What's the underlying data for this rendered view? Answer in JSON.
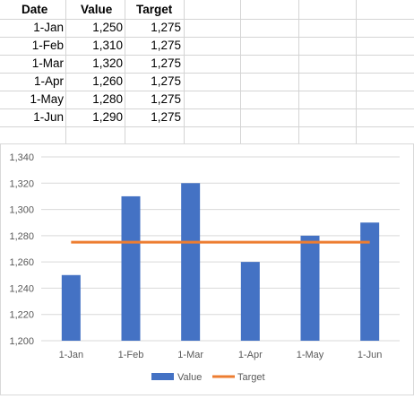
{
  "sheet": {
    "headers": {
      "date": "Date",
      "value": "Value",
      "target": "Target"
    },
    "rows": [
      {
        "date": "1-Jan",
        "value": "1,250",
        "target": "1,275"
      },
      {
        "date": "1-Feb",
        "value": "1,310",
        "target": "1,275"
      },
      {
        "date": "1-Mar",
        "value": "1,320",
        "target": "1,275"
      },
      {
        "date": "1-Apr",
        "value": "1,260",
        "target": "1,275"
      },
      {
        "date": "1-May",
        "value": "1,280",
        "target": "1,275"
      },
      {
        "date": "1-Jun",
        "value": "1,290",
        "target": "1,275"
      }
    ]
  },
  "chart_data": {
    "type": "bar",
    "title": "",
    "xlabel": "",
    "ylabel": "",
    "categories": [
      "1-Jan",
      "1-Feb",
      "1-Mar",
      "1-Apr",
      "1-May",
      "1-Jun"
    ],
    "series": [
      {
        "name": "Value",
        "kind": "bar",
        "color": "#4472c4",
        "values": [
          1250,
          1310,
          1320,
          1260,
          1280,
          1290
        ]
      },
      {
        "name": "Target",
        "kind": "line",
        "color": "#ed7d31",
        "values": [
          1275,
          1275,
          1275,
          1275,
          1275,
          1275
        ]
      }
    ],
    "ylim": [
      1200,
      1340
    ],
    "yticks": [
      1200,
      1220,
      1240,
      1260,
      1280,
      1300,
      1320,
      1340
    ],
    "ytick_labels": [
      "1,200",
      "1,220",
      "1,240",
      "1,260",
      "1,280",
      "1,300",
      "1,320",
      "1,340"
    ],
    "grid": true,
    "legend_position": "bottom"
  },
  "colors": {
    "bar": "#4472c4",
    "target_line": "#ed7d31",
    "gridlines": "#d9d9d9",
    "cell_borders": "#d4d4d4"
  }
}
